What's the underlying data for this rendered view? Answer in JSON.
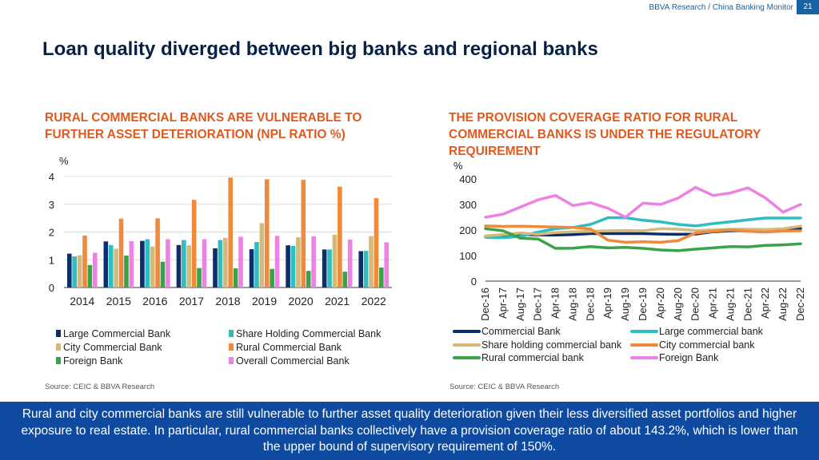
{
  "header": {
    "report": "BBVA Research / China Banking Monitor",
    "page": "21"
  },
  "title": "Loan quality diverged between big banks and regional banks",
  "left": {
    "heading": [
      "RURAL COMMERCIAL BANKS ARE VULNERABLE TO",
      "FURTHER ASSET DETERIORATION (NPL RATIO %)"
    ],
    "source": "Source: CEIC & BBVA Research"
  },
  "right": {
    "heading": [
      "THE PROVISION COVERAGE RATIO FOR RURAL",
      "COMMERCIAL BANKS IS UNDER THE REGULATORY",
      "REQUIREMENT"
    ],
    "source": "Source: CEIC & BBVA Research"
  },
  "footer": "Rural and city commercial banks are still vulnerable to further asset quality deterioration given their less diversified asset portfolios and higher exposure to real estate. In particular, rural commercial banks collectively have a provision coverage ratio of about 143.2%, which is lower than the upper bound of supervisory requirement of 150%.",
  "chart_data": [
    {
      "type": "bar",
      "ylabel": "%",
      "ylim": [
        0,
        4
      ],
      "yticks": [
        0,
        1,
        2,
        3,
        4
      ],
      "grid": true,
      "legend": "bottom",
      "categories": [
        "2014",
        "2015",
        "2016",
        "2017",
        "2018",
        "2019",
        "2020",
        "2021",
        "2022"
      ],
      "series": [
        {
          "name": "Large Commercial Bank",
          "color": "#0c2f6b",
          "values": [
            1.22,
            1.66,
            1.68,
            1.53,
            1.41,
            1.38,
            1.52,
            1.37,
            1.31
          ]
        },
        {
          "name": "Share Holding Commercial Bank",
          "color": "#2ebdc0",
          "values": [
            1.12,
            1.53,
            1.74,
            1.71,
            1.71,
            1.64,
            1.5,
            1.37,
            1.32
          ]
        },
        {
          "name": "City Commercial Bank",
          "color": "#d4b97a",
          "values": [
            1.16,
            1.4,
            1.48,
            1.52,
            1.79,
            2.32,
            1.81,
            1.9,
            1.85
          ]
        },
        {
          "name": "Rural Commercial Bank",
          "color": "#ef8a3c",
          "values": [
            1.87,
            2.48,
            2.49,
            3.16,
            3.96,
            3.9,
            3.88,
            3.63,
            3.22
          ]
        },
        {
          "name": "Foreign Bank",
          "color": "#3aa34a",
          "values": [
            0.81,
            1.15,
            0.93,
            0.7,
            0.69,
            0.67,
            0.6,
            0.57,
            0.72
          ]
        },
        {
          "name": "Overall Commercial Bank",
          "color": "#ee82e4",
          "values": [
            1.25,
            1.67,
            1.74,
            1.74,
            1.83,
            1.86,
            1.84,
            1.73,
            1.63
          ]
        }
      ]
    },
    {
      "type": "line",
      "ylabel": "%",
      "ylim": [
        0,
        400
      ],
      "yticks": [
        0,
        100,
        200,
        300,
        400
      ],
      "grid": false,
      "legend": "bottom",
      "x": [
        "Dec-16",
        "Apr-17",
        "Aug-17",
        "Dec-17",
        "Apr-18",
        "Aug-18",
        "Dec-18",
        "Apr-19",
        "Aug-19",
        "Dec-19",
        "Apr-20",
        "Aug-20",
        "Dec-20",
        "Apr-21",
        "Aug-21",
        "Dec-21",
        "Apr-22",
        "Aug-22",
        "Dec-22"
      ],
      "series": [
        {
          "name": "Commercial Bank",
          "color": "#0c2f6b",
          "values": [
            176,
            180,
            182,
            181,
            180,
            182,
            186,
            186,
            186,
            186,
            184,
            183,
            184,
            193,
            197,
            197,
            200,
            203,
            206
          ]
        },
        {
          "name": "Large commercial bank",
          "color": "#2ebdc0",
          "values": [
            172,
            170,
            175,
            192,
            205,
            210,
            222,
            248,
            248,
            238,
            232,
            222,
            216,
            225,
            232,
            240,
            247,
            247,
            247
          ]
        },
        {
          "name": "Share holding commercial bank",
          "color": "#d4b97a",
          "values": [
            177,
            182,
            188,
            183,
            190,
            193,
            195,
            197,
            198,
            197,
            205,
            203,
            198,
            200,
            203,
            203,
            202,
            205,
            215
          ]
        },
        {
          "name": "City commercial bank",
          "color": "#ef8a3c",
          "values": [
            216,
            214,
            215,
            213,
            212,
            210,
            204,
            160,
            152,
            154,
            152,
            158,
            188,
            195,
            200,
            195,
            192,
            196,
            197
          ]
        },
        {
          "name": "Rural commercial bank",
          "color": "#3aa34a",
          "values": [
            205,
            197,
            168,
            165,
            128,
            129,
            135,
            130,
            132,
            128,
            122,
            119,
            125,
            130,
            135,
            134,
            140,
            142,
            146
          ]
        },
        {
          "name": "Foreign Bank",
          "color": "#ee82e4",
          "values": [
            250,
            262,
            290,
            318,
            335,
            296,
            307,
            285,
            250,
            305,
            300,
            325,
            367,
            335,
            345,
            365,
            325,
            270,
            300
          ]
        }
      ]
    }
  ]
}
